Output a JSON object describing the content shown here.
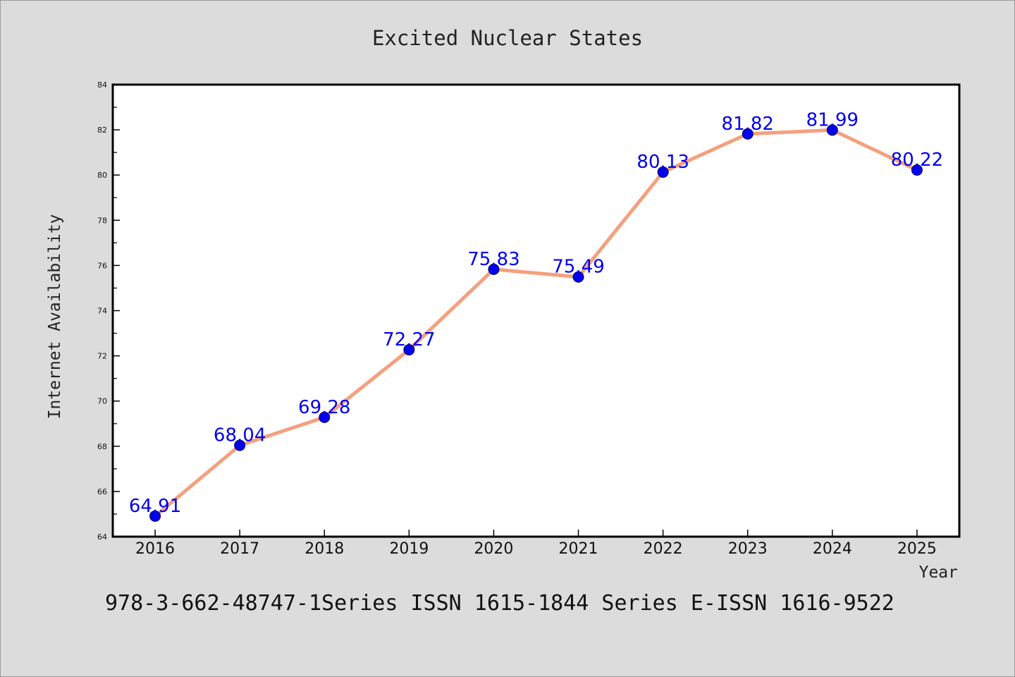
{
  "chart_data": {
    "type": "line",
    "title": "Excited Nuclear States",
    "xlabel": "Year",
    "ylabel": "Internet Availability",
    "categories": [
      "2016",
      "2017",
      "2018",
      "2019",
      "2020",
      "2021",
      "2022",
      "2023",
      "2024",
      "2025"
    ],
    "values": [
      64.91,
      68.04,
      69.28,
      72.27,
      75.83,
      75.49,
      80.13,
      81.82,
      81.99,
      80.22
    ],
    "data_labels": [
      "64.91",
      "68.04",
      "69.28",
      "72.27",
      "75.83",
      "75.49",
      "80.13",
      "81.82",
      "81.99",
      "80.22"
    ],
    "ylim": [
      64,
      84
    ],
    "y_ticks": [
      "64",
      "66",
      "68",
      "70",
      "72",
      "74",
      "76",
      "78",
      "80",
      "82",
      "84"
    ],
    "grid": false,
    "line_color": "#f4a07e",
    "marker_color": "#0000ee",
    "label_color": "#0000ee",
    "background_color": "#dcdcdc",
    "plot_background_color": "#ffffff"
  },
  "footer_text": "978-3-662-48747-1Series ISSN 1615-1844 Series E-ISSN 1616-9522"
}
